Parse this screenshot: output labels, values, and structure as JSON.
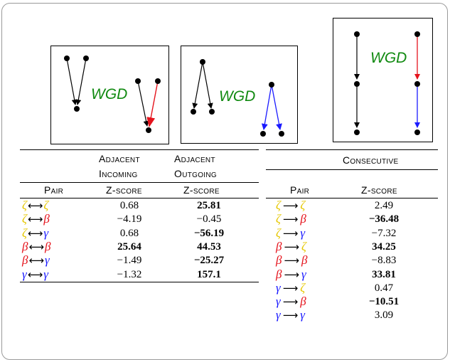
{
  "figure": {
    "wgd_label": "WGD",
    "colors": {
      "zeta": "#e6c800",
      "beta": "#e5131c",
      "gamma": "#1a1aff",
      "wgd_text": "#118a11"
    }
  },
  "left_table": {
    "group_headers": [
      {
        "line1": "Adjacent",
        "line2": "Incoming"
      },
      {
        "line1": "Adjacent",
        "line2": "Outgoing"
      }
    ],
    "col_headers": {
      "pair": "Pair",
      "z_in": "Z-score",
      "z_out": "Z-score"
    },
    "arrow": "⟷",
    "rows": [
      {
        "a": "ζ",
        "a_color": "zeta",
        "b": "ζ",
        "b_color": "zeta",
        "z_in": "0.68",
        "z_in_bold": false,
        "z_out": "25.81",
        "z_out_bold": true
      },
      {
        "a": "ζ",
        "a_color": "zeta",
        "b": "β",
        "b_color": "beta",
        "z_in": "−4.19",
        "z_in_bold": false,
        "z_out": "−0.45",
        "z_out_bold": false
      },
      {
        "a": "ζ",
        "a_color": "zeta",
        "b": "γ",
        "b_color": "gamma",
        "z_in": "0.68",
        "z_in_bold": false,
        "z_out": "−56.19",
        "z_out_bold": true
      },
      {
        "a": "β",
        "a_color": "beta",
        "b": "β",
        "b_color": "beta",
        "z_in": "25.64",
        "z_in_bold": true,
        "z_out": "44.53",
        "z_out_bold": true
      },
      {
        "a": "β",
        "a_color": "beta",
        "b": "γ",
        "b_color": "gamma",
        "z_in": "−1.49",
        "z_in_bold": false,
        "z_out": "−25.27",
        "z_out_bold": true
      },
      {
        "a": "γ",
        "a_color": "gamma",
        "b": "γ",
        "b_color": "gamma",
        "z_in": "−1.32",
        "z_in_bold": false,
        "z_out": "157.1",
        "z_out_bold": true
      }
    ]
  },
  "right_table": {
    "group_header": "Consecutive",
    "col_headers": {
      "pair": "Pair",
      "z": "Z-score"
    },
    "arrow": "⟶",
    "rows": [
      {
        "a": "ζ",
        "a_color": "zeta",
        "b": "ζ",
        "b_color": "zeta",
        "z": "2.49",
        "bold": false
      },
      {
        "a": "ζ",
        "a_color": "zeta",
        "b": "β",
        "b_color": "beta",
        "z": "−36.48",
        "bold": true
      },
      {
        "a": "ζ",
        "a_color": "zeta",
        "b": "γ",
        "b_color": "gamma",
        "z": "−7.32",
        "bold": false
      },
      {
        "a": "β",
        "a_color": "beta",
        "b": "ζ",
        "b_color": "zeta",
        "z": "34.25",
        "bold": true
      },
      {
        "a": "β",
        "a_color": "beta",
        "b": "β",
        "b_color": "beta",
        "z": "−8.83",
        "bold": false
      },
      {
        "a": "β",
        "a_color": "beta",
        "b": "γ",
        "b_color": "gamma",
        "z": "33.81",
        "bold": true
      },
      {
        "a": "γ",
        "a_color": "gamma",
        "b": "ζ",
        "b_color": "zeta",
        "z": "0.47",
        "bold": false
      },
      {
        "a": "γ",
        "a_color": "gamma",
        "b": "β",
        "b_color": "beta",
        "z": "−10.51",
        "bold": true
      },
      {
        "a": "γ",
        "a_color": "gamma",
        "b": "γ",
        "b_color": "gamma",
        "z": "3.09",
        "bold": false
      }
    ]
  }
}
